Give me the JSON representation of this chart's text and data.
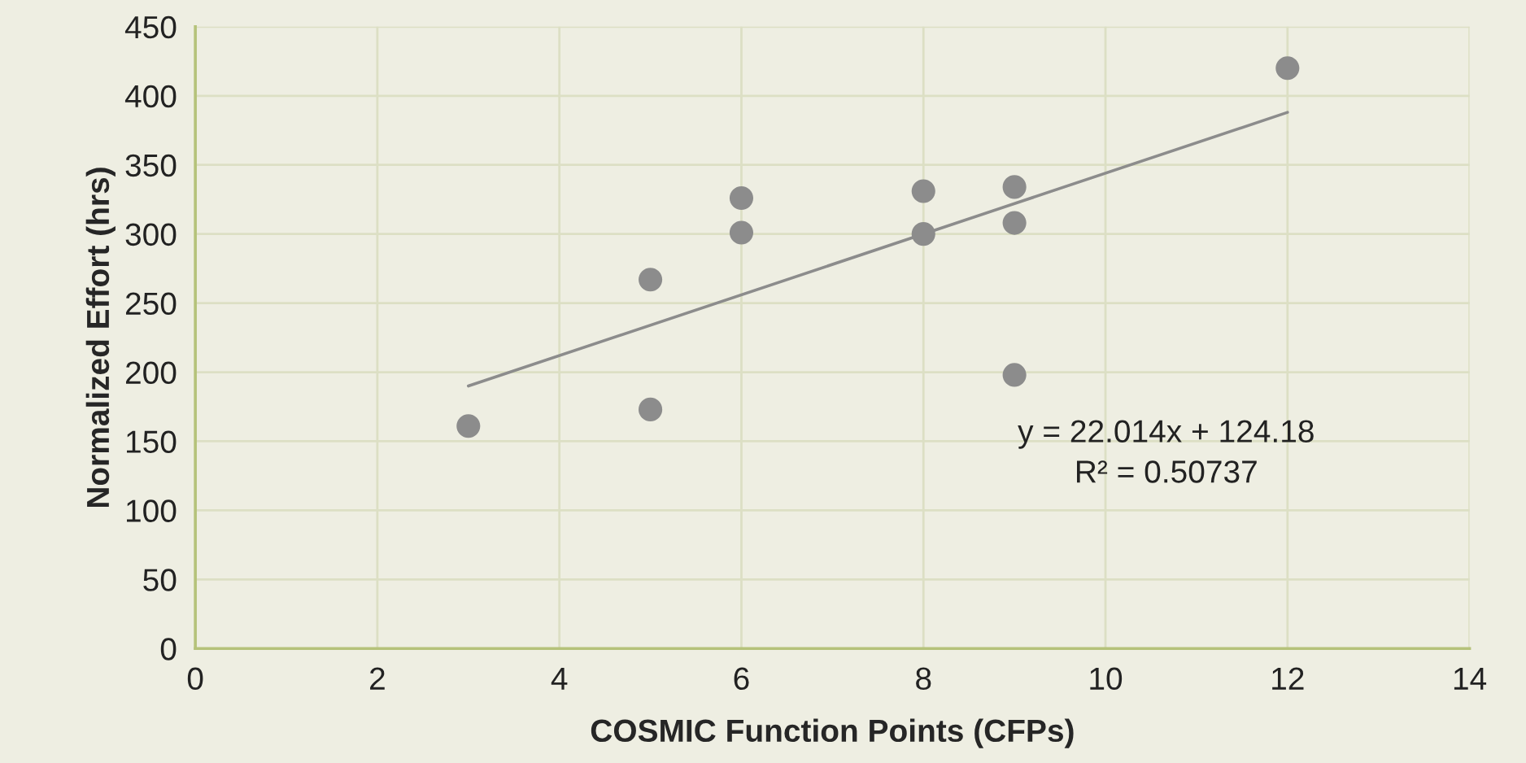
{
  "chart_data": {
    "type": "scatter",
    "xlabel": "COSMIC Function Points (CFPs)",
    "ylabel": "Normalized Effort (hrs)",
    "xlim": [
      0,
      14
    ],
    "xticks": [
      0,
      2,
      4,
      6,
      8,
      10,
      12,
      14
    ],
    "ylim": [
      0,
      450
    ],
    "yticks": [
      0,
      50,
      100,
      150,
      200,
      250,
      300,
      350,
      400,
      450
    ],
    "grid": true,
    "series": [
      {
        "marker": "circle",
        "color": "#8c8c8c",
        "x": [
          3,
          5,
          5,
          6,
          6,
          8,
          8,
          9,
          9,
          9,
          12
        ],
        "values": [
          161,
          173,
          267,
          301,
          326,
          300,
          331,
          334,
          308,
          198,
          420
        ]
      },
      {
        "type": "line",
        "color": "#8c8c8c",
        "x": [
          3,
          12
        ],
        "values": [
          190,
          388
        ],
        "line_style": "solid",
        "marker": "none"
      }
    ],
    "annotations": [
      "y = 22.014x + 124.18",
      "R² = 0.50737"
    ]
  }
}
